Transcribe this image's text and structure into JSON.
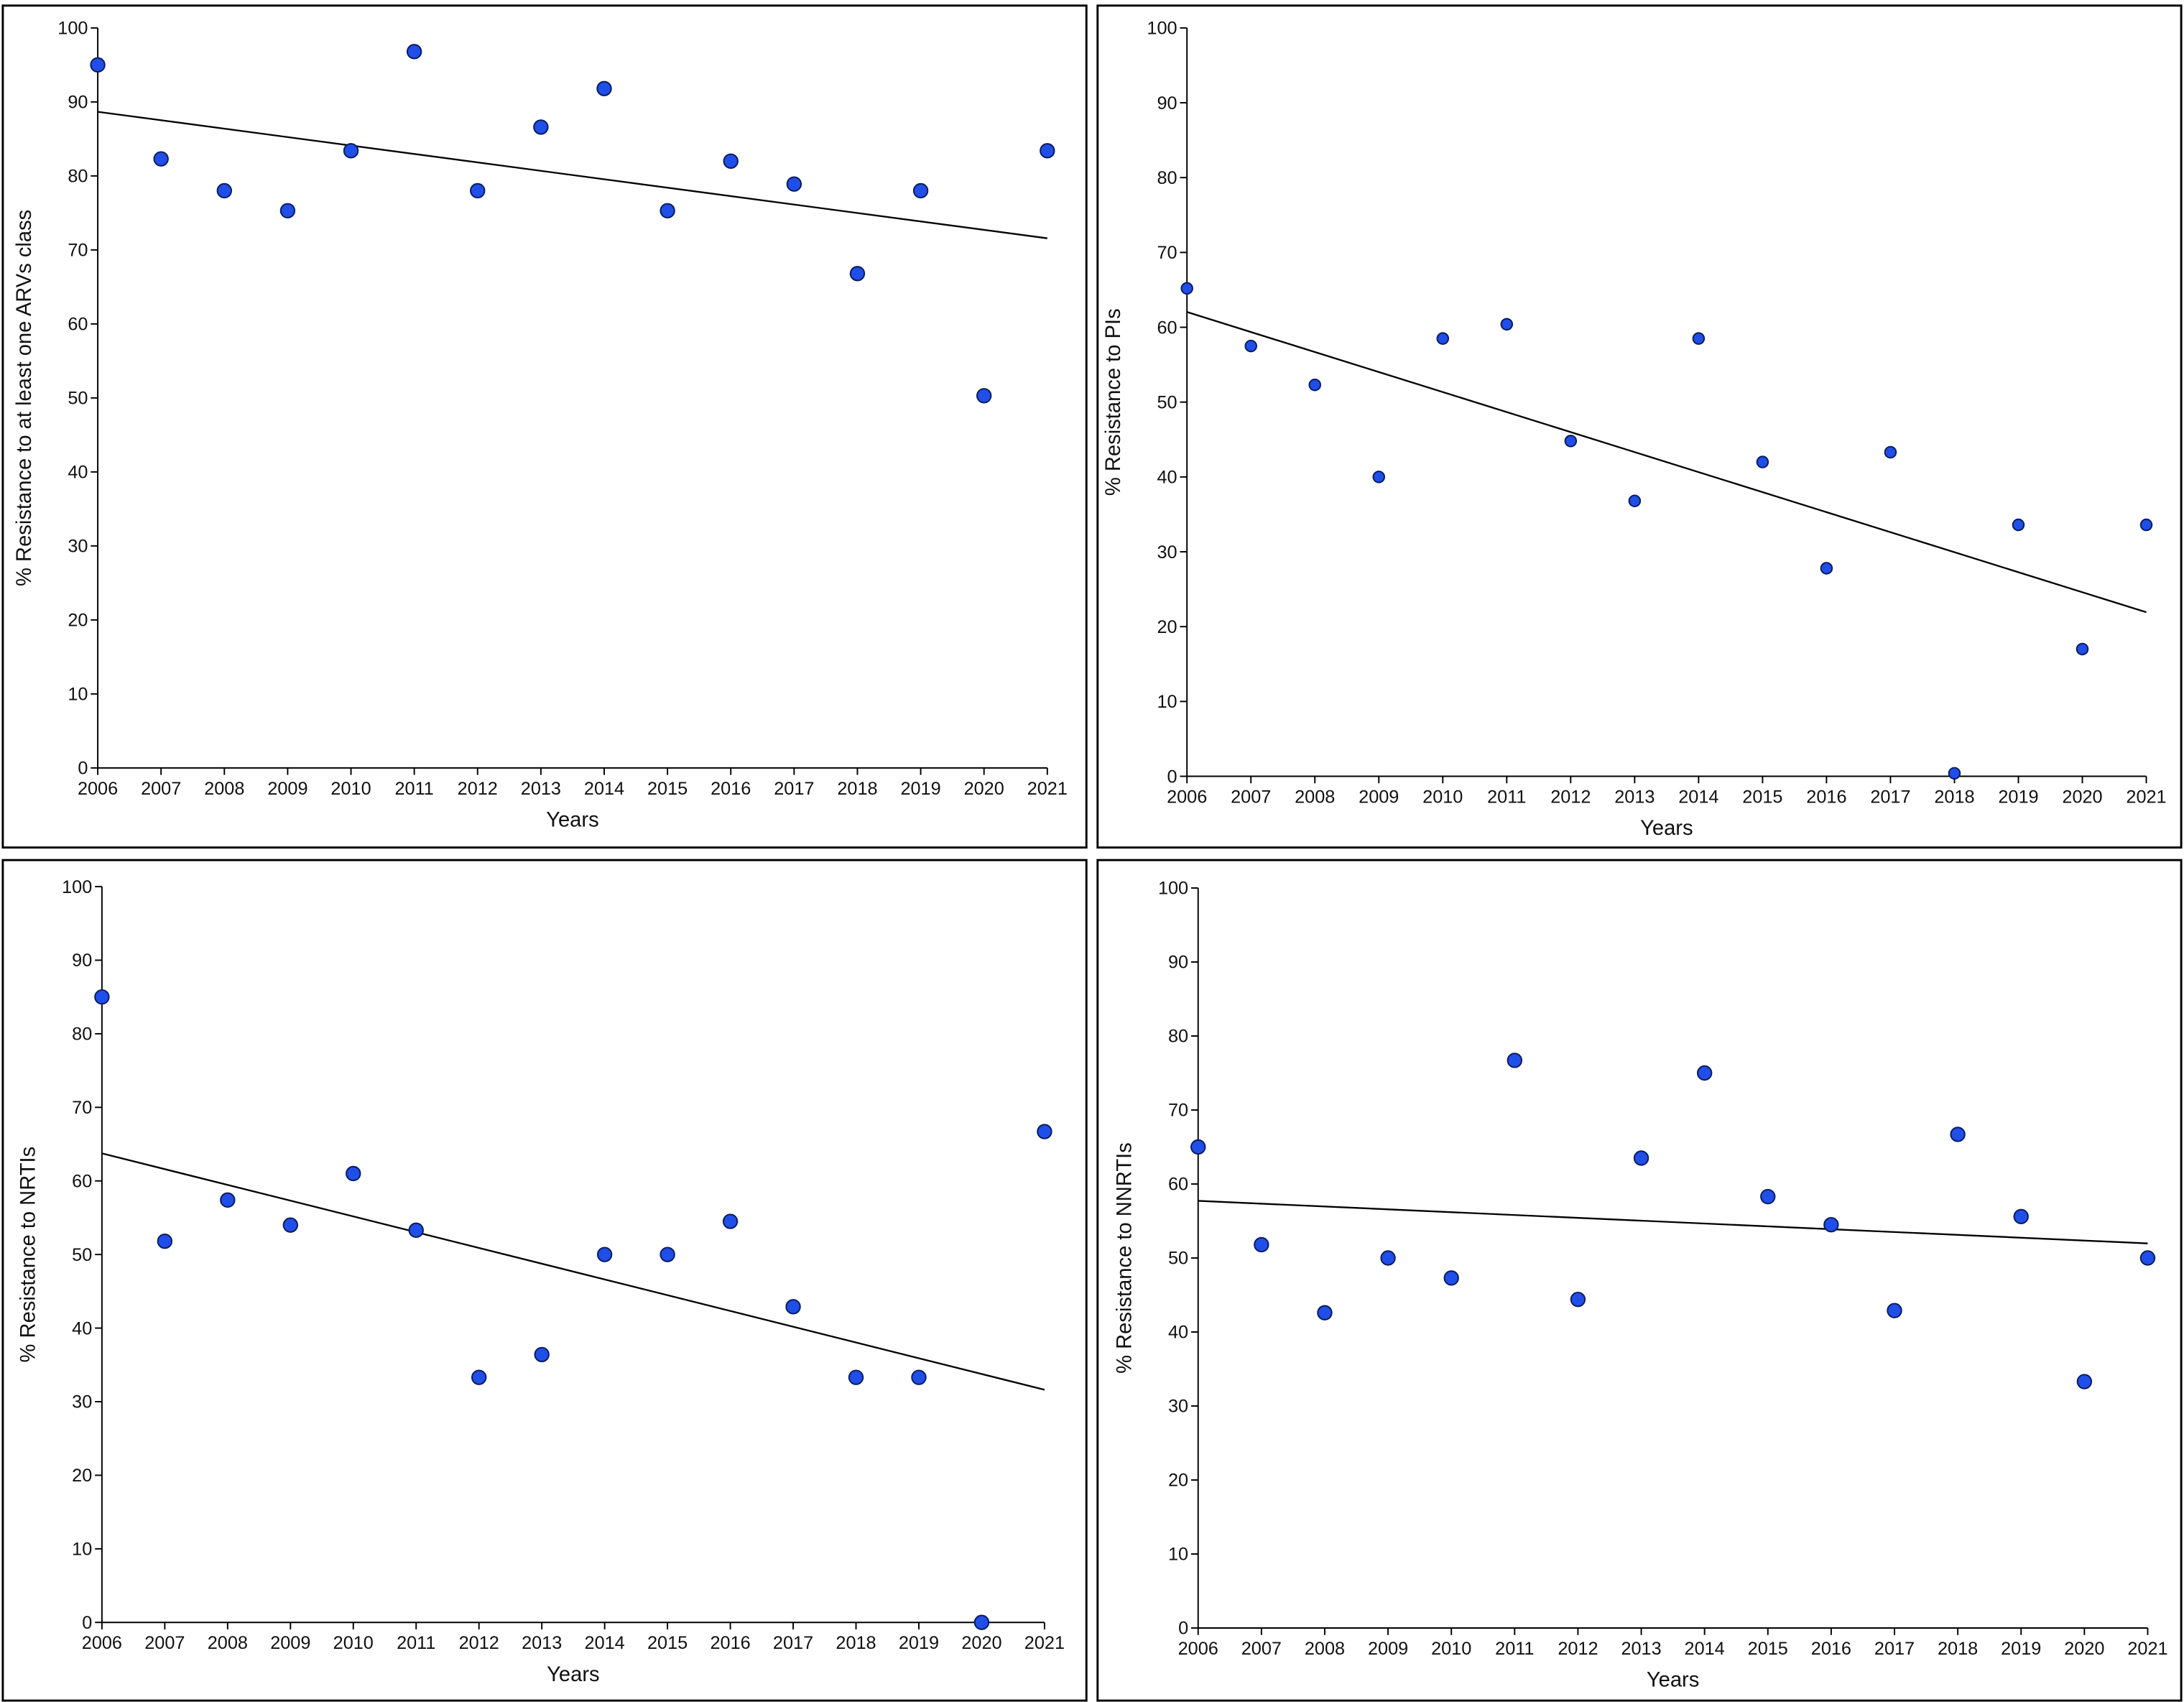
{
  "chart_data": [
    {
      "type": "scatter",
      "x_label": "Years",
      "y_label": "% Resistance to at least one ARVs class",
      "x": [
        2006,
        2007,
        2008,
        2009,
        2010,
        2011,
        2012,
        2013,
        2014,
        2015,
        2016,
        2017,
        2018,
        2019,
        2020,
        2021
      ],
      "values": [
        95,
        82.3,
        78,
        75.3,
        83.4,
        96.8,
        78,
        86.6,
        91.8,
        75.3,
        82,
        78.9,
        66.8,
        78,
        50.3,
        83.4
      ],
      "xlim": [
        2006,
        2021
      ],
      "xticks": [
        2006,
        2007,
        2008,
        2009,
        2010,
        2011,
        2012,
        2013,
        2014,
        2015,
        2016,
        2017,
        2018,
        2019,
        2020,
        2021
      ],
      "ylim": [
        0,
        100
      ],
      "yticks": [
        0,
        10,
        20,
        30,
        40,
        50,
        60,
        70,
        80,
        90,
        100
      ],
      "color": "#1f4ee8",
      "trendline": true
    },
    {
      "type": "scatter",
      "x_label": "Years",
      "y_label": "% Resistance to PIs",
      "x": [
        2006,
        2007,
        2008,
        2009,
        2010,
        2011,
        2012,
        2013,
        2014,
        2015,
        2016,
        2017,
        2018,
        2019,
        2020,
        2021
      ],
      "values": [
        65.2,
        57.5,
        52.3,
        40,
        58.5,
        60.4,
        44.8,
        36.8,
        58.5,
        42,
        27.8,
        43.3,
        0.4,
        33.6,
        17,
        33.6
      ],
      "xlim": [
        2006,
        2021
      ],
      "xticks": [
        2006,
        2007,
        2008,
        2009,
        2010,
        2011,
        2012,
        2013,
        2014,
        2015,
        2016,
        2017,
        2018,
        2019,
        2020,
        2021
      ],
      "ylim": [
        0,
        100
      ],
      "yticks": [
        0,
        10,
        20,
        30,
        40,
        50,
        60,
        70,
        80,
        90,
        100
      ],
      "color": "#1f4ee8",
      "trendline": true
    },
    {
      "type": "scatter",
      "x_label": "Years",
      "y_label": "% Resistance to NRTIs",
      "x": [
        2006,
        2007,
        2008,
        2009,
        2010,
        2011,
        2012,
        2013,
        2014,
        2015,
        2016,
        2017,
        2018,
        2019,
        2020,
        2021
      ],
      "values": [
        85,
        51.8,
        57.4,
        54,
        61,
        53.3,
        33.3,
        36.4,
        50,
        50,
        54.5,
        42.9,
        33.3,
        33.3,
        0,
        66.7
      ],
      "xlim": [
        2006,
        2021
      ],
      "xticks": [
        2006,
        2007,
        2008,
        2009,
        2010,
        2011,
        2012,
        2013,
        2014,
        2015,
        2016,
        2017,
        2018,
        2019,
        2020,
        2021
      ],
      "ylim": [
        0,
        100
      ],
      "yticks": [
        0,
        10,
        20,
        30,
        40,
        50,
        60,
        70,
        80,
        90,
        100
      ],
      "color": "#1f4ee8",
      "trendline": true
    },
    {
      "type": "scatter",
      "x_label": "Years",
      "y_label": "% Resistance to NNRTIs",
      "x": [
        2006,
        2007,
        2008,
        2009,
        2010,
        2011,
        2012,
        2013,
        2014,
        2015,
        2016,
        2017,
        2018,
        2019,
        2020,
        2021
      ],
      "values": [
        65,
        51.8,
        42.6,
        50,
        47.3,
        76.7,
        44.4,
        63.5,
        75,
        58.3,
        54.5,
        42.9,
        66.7,
        55.6,
        33.3,
        50
      ],
      "xlim": [
        2006,
        2021
      ],
      "xticks": [
        2006,
        2007,
        2008,
        2009,
        2010,
        2011,
        2012,
        2013,
        2014,
        2015,
        2016,
        2017,
        2018,
        2019,
        2020,
        2021
      ],
      "ylim": [
        0,
        100
      ],
      "yticks": [
        0,
        10,
        20,
        30,
        40,
        50,
        60,
        70,
        80,
        90,
        100
      ],
      "color": "#1f4ee8",
      "trendline": true
    }
  ]
}
